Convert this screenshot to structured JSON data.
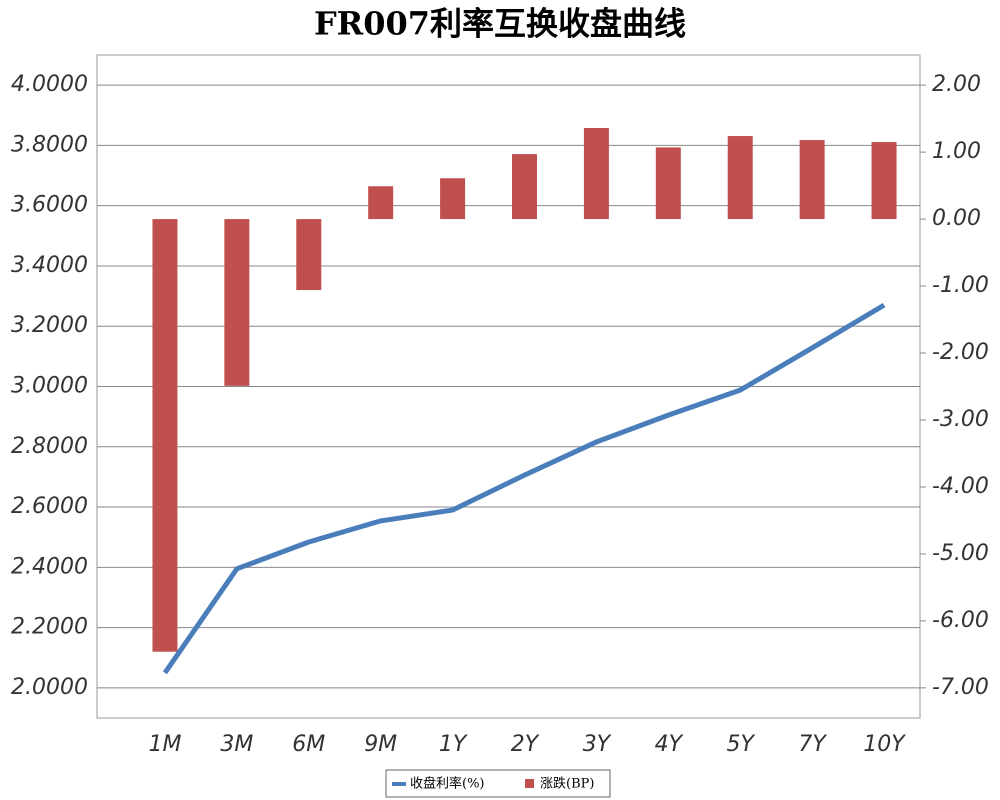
{
  "chart_data": {
    "type": "bar-line",
    "title": "FR007利率互换收盘曲线",
    "categories": [
      "1M",
      "3M",
      "6M",
      "9M",
      "1Y",
      "2Y",
      "3Y",
      "4Y",
      "5Y",
      "7Y",
      "10Y"
    ],
    "series": [
      {
        "name": "收盘利率(%)",
        "type": "line",
        "color": "#4a7ebb",
        "axis": "y",
        "values": [
          2.05,
          2.395,
          2.484,
          2.554,
          2.59,
          2.706,
          2.816,
          2.905,
          2.988,
          3.128,
          3.27
        ]
      },
      {
        "name": "涨跌(BP)",
        "type": "bar",
        "color": "#c0504d",
        "axis": "y2",
        "values": [
          -6.46,
          -2.49,
          -1.06,
          0.49,
          0.61,
          0.97,
          1.36,
          1.07,
          1.24,
          1.18,
          1.15
        ]
      }
    ],
    "ylim": [
      1.9,
      4.1
    ],
    "yticks": [
      {
        "value": 2,
        "label": "2.0000"
      },
      {
        "value": 2.2,
        "label": "2.2000"
      },
      {
        "value": 2.4,
        "label": "2.4000"
      },
      {
        "value": 2.6,
        "label": "2.6000"
      },
      {
        "value": 2.8,
        "label": "2.8000"
      },
      {
        "value": 3,
        "label": "3.0000"
      },
      {
        "value": 3.2,
        "label": "3.2000"
      },
      {
        "value": 3.4,
        "label": "3.4000"
      },
      {
        "value": 3.6,
        "label": "3.6000"
      },
      {
        "value": 3.8,
        "label": "3.8000"
      },
      {
        "value": 4,
        "label": "4.0000"
      }
    ],
    "y2lim": [
      -7.45,
      2.45
    ],
    "y2ticks": [
      {
        "value": -7,
        "label": "-7.00"
      },
      {
        "value": -6,
        "label": "-6.00"
      },
      {
        "value": -5,
        "label": "-5.00"
      },
      {
        "value": -4,
        "label": "-4.00"
      },
      {
        "value": -3,
        "label": "-3.00"
      },
      {
        "value": -2,
        "label": "-2.00"
      },
      {
        "value": -1,
        "label": "-1.00"
      },
      {
        "value": 0,
        "label": "0.00"
      },
      {
        "value": 1,
        "label": "1.00"
      },
      {
        "value": 2,
        "label": "2.00"
      }
    ],
    "grid": true,
    "legend": "bottom"
  }
}
